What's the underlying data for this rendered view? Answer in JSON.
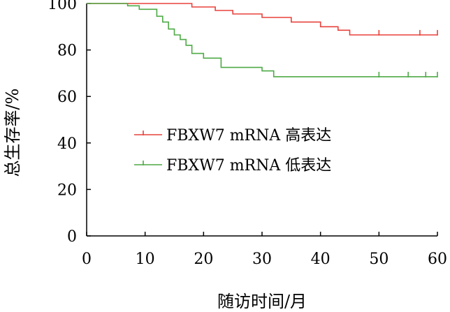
{
  "chart_data": {
    "type": "line",
    "title": "",
    "xlabel": "随访时间/月",
    "ylabel": "总生存率/%",
    "xlim": [
      0,
      60
    ],
    "ylim": [
      0,
      100
    ],
    "x_ticks": [
      "0",
      "10",
      "20",
      "30",
      "40",
      "50",
      "60"
    ],
    "y_ticks": [
      "0",
      "20",
      "40",
      "60",
      "80",
      "100"
    ],
    "grid": false,
    "legend_position": "center",
    "series": [
      {
        "name": "FBXW7 mRNA 高表达",
        "color": "#e8413c",
        "step": true,
        "points": [
          [
            0,
            100
          ],
          [
            18,
            100
          ],
          [
            18,
            98.5
          ],
          [
            22,
            98.5
          ],
          [
            22,
            97
          ],
          [
            25,
            97
          ],
          [
            25,
            95.5
          ],
          [
            30,
            95.5
          ],
          [
            30,
            94
          ],
          [
            35,
            94
          ],
          [
            35,
            92
          ],
          [
            40,
            92
          ],
          [
            40,
            90
          ],
          [
            43,
            90
          ],
          [
            43,
            88.5
          ],
          [
            45,
            88.5
          ],
          [
            45,
            86.5
          ],
          [
            60,
            86.5
          ]
        ],
        "censor": [
          50,
          57,
          60
        ]
      },
      {
        "name": "FBXW7 mRNA 低表达",
        "color": "#4daa45",
        "step": true,
        "points": [
          [
            0,
            100
          ],
          [
            7,
            100
          ],
          [
            7,
            99
          ],
          [
            9,
            99
          ],
          [
            9,
            97.5
          ],
          [
            12,
            97.5
          ],
          [
            12,
            94.5
          ],
          [
            13,
            94.5
          ],
          [
            13,
            92
          ],
          [
            14,
            92
          ],
          [
            14,
            89
          ],
          [
            15,
            89
          ],
          [
            15,
            86.5
          ],
          [
            16,
            86.5
          ],
          [
            16,
            84.5
          ],
          [
            17,
            84.5
          ],
          [
            17,
            82
          ],
          [
            18,
            82
          ],
          [
            18,
            78.5
          ],
          [
            20,
            78.5
          ],
          [
            20,
            76.5
          ],
          [
            23,
            76.5
          ],
          [
            23,
            72.5
          ],
          [
            30,
            72.5
          ],
          [
            30,
            71
          ],
          [
            32,
            71
          ],
          [
            32,
            68.5
          ],
          [
            60,
            68.5
          ]
        ],
        "censor": [
          50,
          55,
          58,
          60
        ]
      }
    ]
  }
}
